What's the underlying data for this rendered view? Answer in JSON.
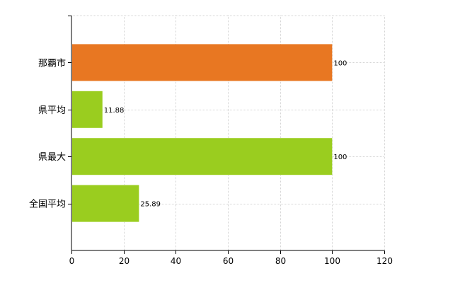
{
  "chart_data": {
    "type": "bar",
    "orientation": "horizontal",
    "categories": [
      "那覇市",
      "県平均",
      "県最大",
      "全国平均"
    ],
    "values": [
      100,
      11.88,
      100,
      25.89
    ],
    "data_labels": [
      "100",
      "11.88",
      "100",
      "25.89"
    ],
    "bar_colors": [
      "#e87722",
      "#9acd1f",
      "#9acd1f",
      "#9acd1f"
    ],
    "xlim": [
      0,
      120
    ],
    "x_ticks": [
      0,
      20,
      40,
      60,
      80,
      100,
      120
    ],
    "title": "",
    "xlabel": "",
    "ylabel": "",
    "grid": true,
    "legend": false
  }
}
